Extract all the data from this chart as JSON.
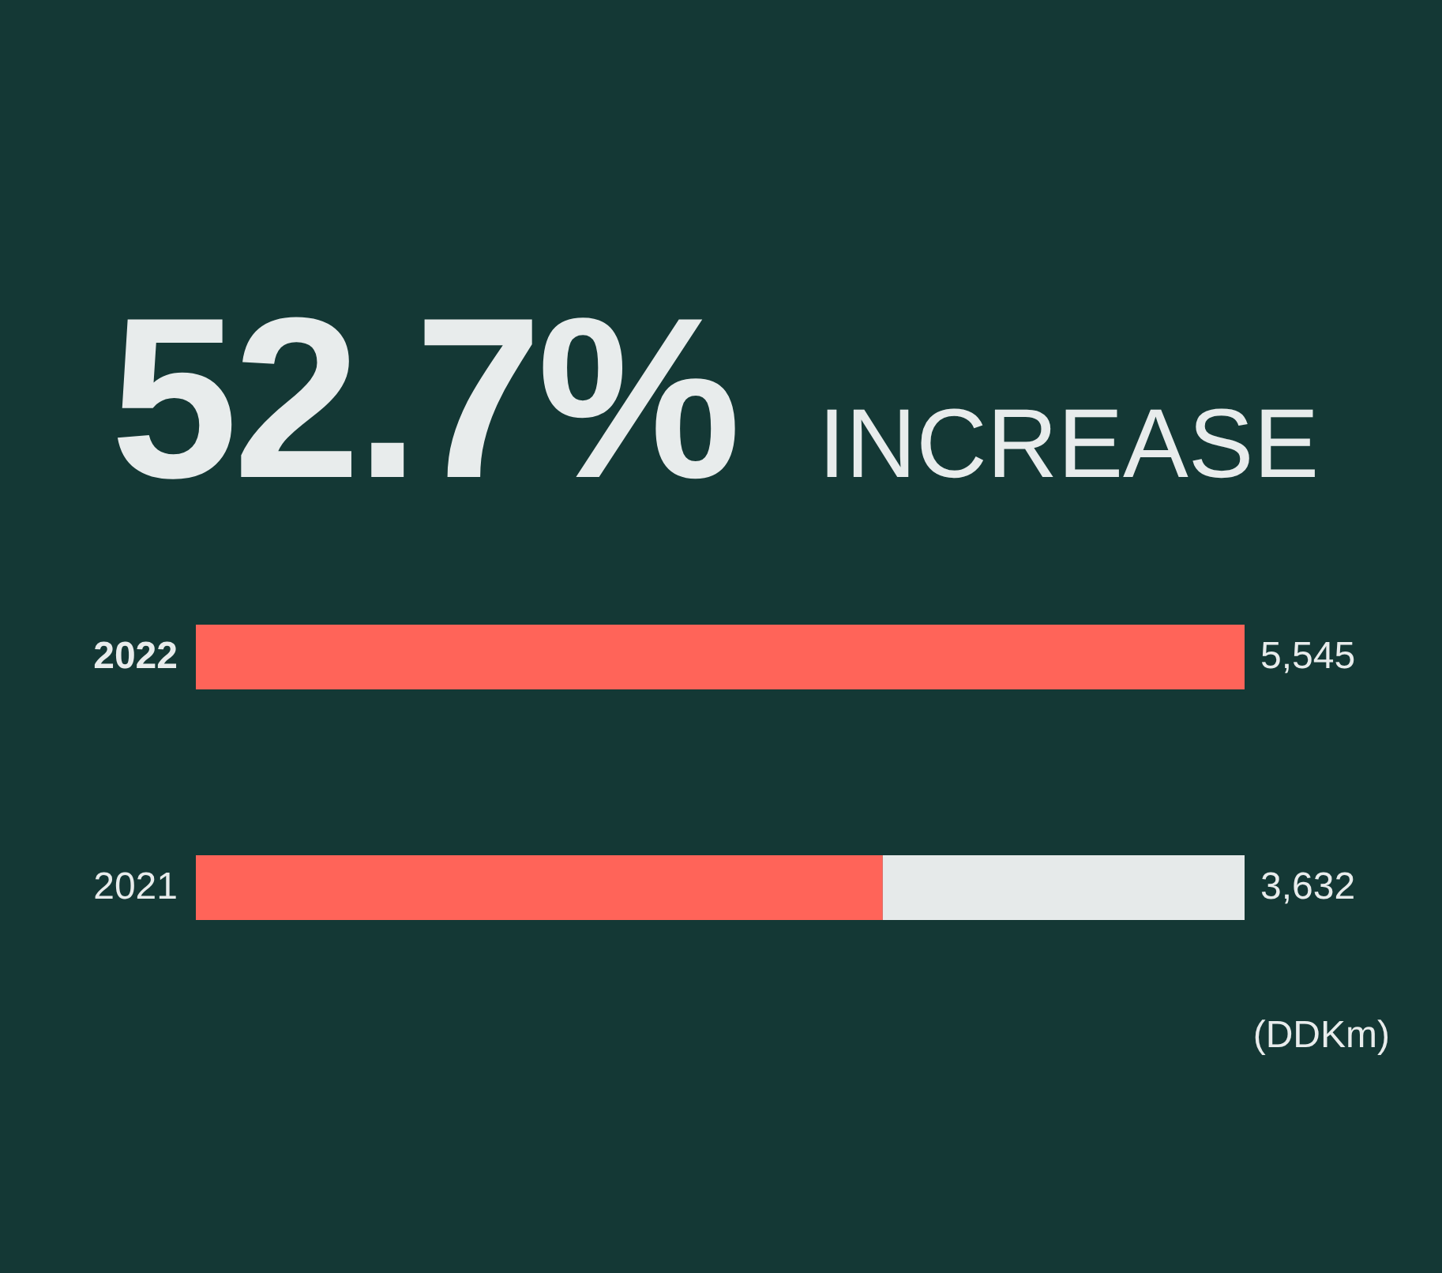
{
  "chart_data": {
    "type": "bar",
    "title": "52.7%",
    "subtitle": "INCREASE",
    "categories": [
      "2022",
      "2021"
    ],
    "orientation": "horizontal",
    "stacked": true,
    "series": [
      {
        "color": "#ff6459",
        "values": [
          5545,
          3632
        ],
        "value_labels": [
          "5,545",
          "3,632"
        ]
      },
      {
        "color": "#e6eaea",
        "values": [
          null,
          1913
        ]
      }
    ],
    "annotations": [
      "(DDKm)"
    ]
  }
}
